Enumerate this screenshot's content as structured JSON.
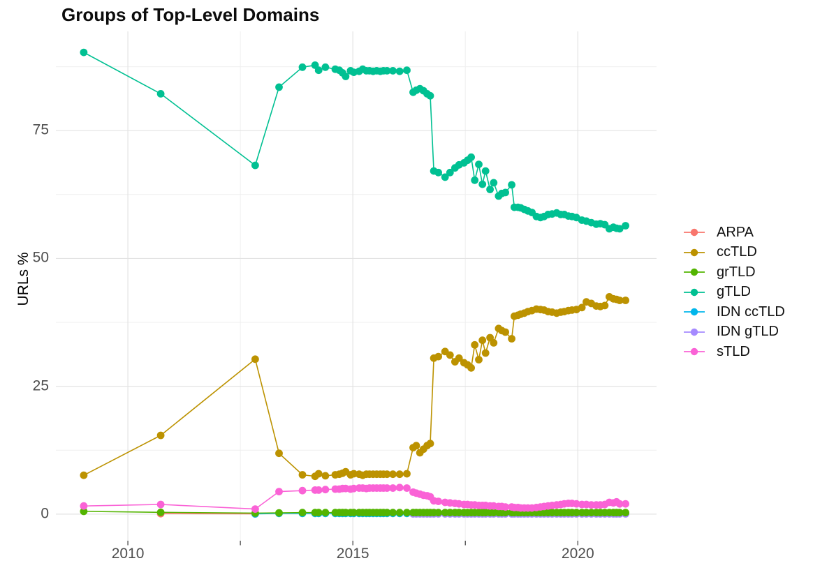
{
  "chart_data": {
    "type": "line",
    "title": "Groups of Top-Level Domains",
    "xlabel": "",
    "ylabel": "URLs %",
    "x_ticks": {
      "major": [
        2010,
        2015,
        2020
      ],
      "minor": [
        2012.5,
        2017.5
      ]
    },
    "y_ticks": {
      "major": [
        0,
        25,
        50,
        75
      ],
      "minor": [
        12.5,
        37.5,
        62.5,
        87.5
      ]
    },
    "xlim": [
      2008.4,
      2021.75
    ],
    "ylim": [
      -5.2,
      94.4
    ],
    "grid": "major+minor",
    "legend_position": "right",
    "x_dense": [
      2013.88,
      2014.16,
      2014.24,
      2014.39,
      2014.61,
      2014.7,
      2014.77,
      2014.84,
      2014.95,
      2015.02,
      2015.14,
      2015.22,
      2015.3,
      2015.37,
      2015.45,
      2015.53,
      2015.61,
      2015.68,
      2015.76,
      2015.89,
      2016.04,
      2016.2,
      2016.34,
      2016.41,
      2016.49,
      2016.57,
      2016.65,
      2016.72,
      2016.8,
      2016.9,
      2017.05,
      2017.16,
      2017.27,
      2017.36,
      2017.47,
      2017.55,
      2017.63,
      2017.71,
      2017.8,
      2017.88,
      2017.95,
      2018.05,
      2018.13,
      2018.24,
      2018.31,
      2018.39,
      2018.53,
      2018.59,
      2018.67,
      2018.73,
      2018.81,
      2018.89,
      2018.98,
      2019.08,
      2019.17,
      2019.25,
      2019.34,
      2019.43,
      2019.53,
      2019.62,
      2019.7,
      2019.79,
      2019.87,
      2019.97,
      2020.09,
      2020.19,
      2020.3,
      2020.41,
      2020.5,
      2020.6,
      2020.7,
      2020.79,
      2020.86,
      2020.93,
      2021.06
    ],
    "series": [
      {
        "name": "ARPA",
        "color": "#F8766D",
        "pre": [
          [
            2010.73,
            0.1
          ],
          [
            2012.83,
            0.05
          ]
        ],
        "dense_y": null
      },
      {
        "name": "ccTLD",
        "color": "#BC9200",
        "pre": [
          [
            2009.02,
            7.6
          ],
          [
            2010.73,
            15.4
          ],
          [
            2012.83,
            30.3
          ],
          [
            2013.36,
            11.9
          ]
        ],
        "dense_y": [
          7.7,
          7.4,
          7.9,
          7.5,
          7.7,
          7.8,
          8,
          8.3,
          7.7,
          7.9,
          7.8,
          7.6,
          7.8,
          7.8,
          7.8,
          7.8,
          7.8,
          7.8,
          7.8,
          7.8,
          7.8,
          7.9,
          13,
          13.4,
          12,
          12.7,
          13.4,
          13.8,
          30.5,
          30.8,
          31.8,
          31.1,
          29.8,
          30.5,
          29.6,
          29.2,
          28.6,
          33.1,
          30.2,
          34,
          31.5,
          34.5,
          33.5,
          36.3,
          35.9,
          35.6,
          34.3,
          38.7,
          38.9,
          39.1,
          39.3,
          39.6,
          39.8,
          40.1,
          40,
          39.9,
          39.6,
          39.5,
          39.3,
          39.5,
          39.6,
          39.8,
          39.9,
          40,
          40.4,
          41.5,
          41.2,
          40.7,
          40.6,
          40.8,
          42.5,
          42.1,
          42,
          41.8,
          41.8
        ]
      },
      {
        "name": "grTLD",
        "color": "#53B400",
        "pre": [
          [
            2009.02,
            0.55
          ],
          [
            2010.73,
            0.35
          ],
          [
            2012.83,
            0.2
          ],
          [
            2013.36,
            0.25
          ]
        ],
        "dense_y": [
          0.3,
          0.3,
          0.3,
          0.3,
          0.3,
          0.3,
          0.3,
          0.3,
          0.3,
          0.3,
          0.3,
          0.3,
          0.3,
          0.3,
          0.3,
          0.3,
          0.3,
          0.3,
          0.3,
          0.3,
          0.3,
          0.3,
          0.3,
          0.3,
          0.3,
          0.3,
          0.3,
          0.3,
          0.3,
          0.3,
          0.3,
          0.3,
          0.3,
          0.3,
          0.3,
          0.3,
          0.3,
          0.3,
          0.3,
          0.3,
          0.3,
          0.3,
          0.3,
          0.3,
          0.3,
          0.3,
          0.3,
          0.3,
          0.3,
          0.3,
          0.3,
          0.3,
          0.3,
          0.3,
          0.3,
          0.3,
          0.3,
          0.3,
          0.3,
          0.3,
          0.3,
          0.3,
          0.3,
          0.3,
          0.3,
          0.3,
          0.3,
          0.3,
          0.3,
          0.3,
          0.3,
          0.3,
          0.3,
          0.3,
          0.3
        ]
      },
      {
        "name": "gTLD",
        "color": "#00C092",
        "pre": [
          [
            2009.02,
            90.3
          ],
          [
            2010.73,
            82.2
          ],
          [
            2012.83,
            68.2
          ],
          [
            2013.36,
            83.5
          ]
        ],
        "dense_y": [
          87.4,
          87.8,
          86.8,
          87.4,
          87,
          86.8,
          86.3,
          85.6,
          86.7,
          86.4,
          86.6,
          87,
          86.7,
          86.7,
          86.6,
          86.7,
          86.6,
          86.7,
          86.7,
          86.7,
          86.6,
          86.8,
          82.5,
          82.9,
          83.2,
          82.8,
          82.2,
          81.8,
          67.1,
          66.8,
          65.9,
          66.8,
          67.7,
          68.3,
          68.7,
          69.2,
          69.8,
          65.3,
          68.4,
          64.5,
          67.1,
          63.5,
          64.8,
          62.2,
          62.7,
          62.9,
          64.4,
          60,
          60,
          59.9,
          59.6,
          59.3,
          59,
          58.2,
          58,
          58.2,
          58.6,
          58.7,
          58.9,
          58.6,
          58.6,
          58.3,
          58.2,
          58,
          57.5,
          57.3,
          57,
          56.7,
          56.8,
          56.6,
          55.8,
          56.1,
          55.9,
          55.8,
          56.4
        ]
      },
      {
        "name": "IDN ccTLD",
        "color": "#00B6EB",
        "pre": [
          [
            2012.83,
            0.05
          ],
          [
            2013.36,
            0.15
          ]
        ],
        "dense_y": [
          0.15,
          0.15,
          0.15,
          0.15,
          0.15,
          0.15,
          0.15,
          0.15,
          0.15,
          0.15,
          0.15,
          0.15,
          0.15,
          0.15,
          0.15,
          0.15,
          0.15,
          0.15,
          0.15,
          0.15,
          0.15,
          0.15,
          0.15,
          0.15,
          0.15,
          0.15,
          0.15,
          0.15,
          0.15,
          0.15,
          0.15,
          0.15,
          0.15,
          0.15,
          0.15,
          0.15,
          0.15,
          0.15,
          0.15,
          0.15,
          0.15,
          0.15,
          0.15,
          0.15,
          0.15,
          0.15,
          0.15,
          0.15,
          0.15,
          0.15,
          0.15,
          0.15,
          0.15,
          0.15,
          0.15,
          0.15,
          0.15,
          0.15,
          0.15,
          0.15,
          0.15,
          0.15,
          0.15,
          0.15,
          0.15,
          0.15,
          0.15,
          0.15,
          0.15,
          0.15,
          0.15,
          0.15,
          0.15,
          0.15,
          0.15
        ]
      },
      {
        "name": "IDN gTLD",
        "color": "#A58AFF",
        "pre": [],
        "dense_y": [
          null,
          null,
          null,
          null,
          null,
          null,
          null,
          null,
          null,
          null,
          null,
          null,
          null,
          null,
          null,
          null,
          null,
          null,
          null,
          null,
          null,
          null,
          0.05,
          0.05,
          0.05,
          0.05,
          0.05,
          0.05,
          0.05,
          0.05,
          0.05,
          0.05,
          0.05,
          0.05,
          0.05,
          0.05,
          0.05,
          0.05,
          0.05,
          0.05,
          0.05,
          0.05,
          0.05,
          0.05,
          0.05,
          0.05,
          0.05,
          0.05,
          0.05,
          0.05,
          0.05,
          0.05,
          0.05,
          0.05,
          0.05,
          0.05,
          0.05,
          0.05,
          0.05,
          0.05,
          0.05,
          0.05,
          0.05,
          0.05,
          0.05,
          0.05,
          0.05,
          0.05,
          0.05,
          0.05,
          0.05,
          0.05,
          0.05,
          0.05,
          0.05
        ]
      },
      {
        "name": "sTLD",
        "color": "#FA62D6",
        "pre": [
          [
            2009.02,
            1.6
          ],
          [
            2010.73,
            1.9
          ],
          [
            2012.83,
            1.0
          ],
          [
            2013.36,
            4.4
          ]
        ],
        "dense_y": [
          4.6,
          4.7,
          4.7,
          4.8,
          4.9,
          4.9,
          5,
          5,
          4.9,
          5,
          5.1,
          5.1,
          5,
          5.1,
          5.1,
          5.1,
          5.1,
          5.1,
          5.1,
          5.1,
          5.2,
          5.1,
          4.3,
          4.1,
          3.9,
          3.7,
          3.6,
          3.4,
          2.6,
          2.5,
          2.3,
          2.2,
          2.1,
          2,
          1.9,
          1.9,
          1.8,
          1.8,
          1.7,
          1.7,
          1.7,
          1.6,
          1.6,
          1.5,
          1.5,
          1.4,
          1.4,
          1.3,
          1.3,
          1.2,
          1.2,
          1.2,
          1.2,
          1.3,
          1.4,
          1.5,
          1.6,
          1.7,
          1.8,
          1.9,
          2,
          2.1,
          2.1,
          2,
          1.9,
          1.9,
          1.8,
          1.8,
          1.8,
          1.9,
          2.3,
          2.2,
          2.4,
          2,
          2
        ]
      }
    ]
  }
}
